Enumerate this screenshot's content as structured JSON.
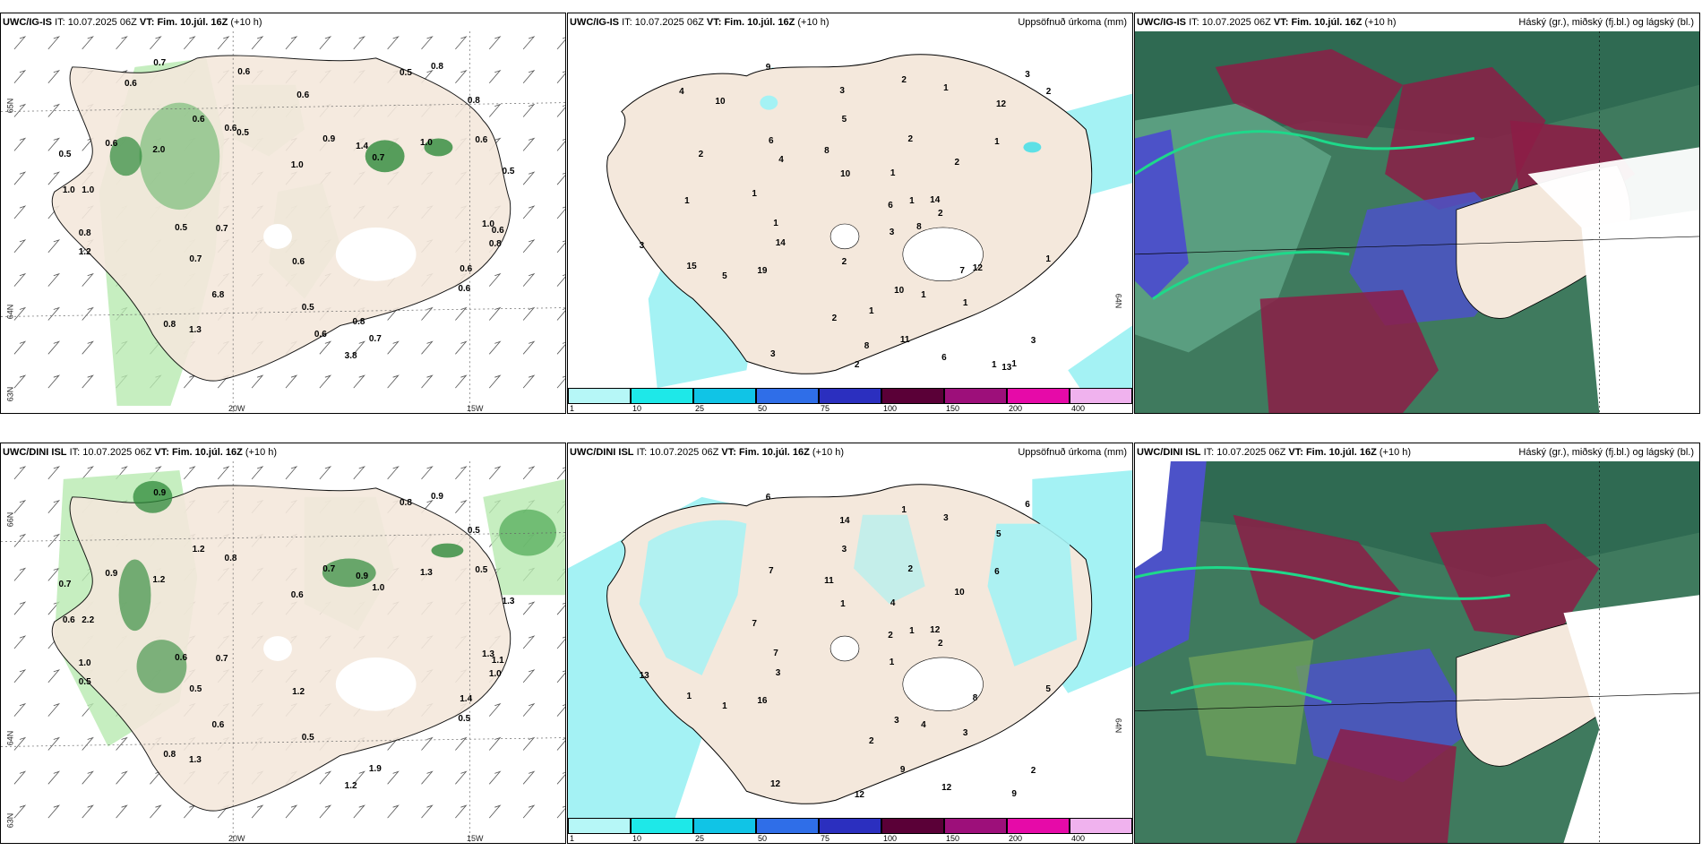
{
  "top": {
    "wind": {
      "model": "UWC/IG-IS",
      "it_label": "IT:",
      "it_value": "10.07.2025 06Z",
      "vt_label": "VT:",
      "vt_value": "Fim. 10.júl. 16Z",
      "lead": "(+10 h)",
      "lat_labels": [
        "65N",
        "64N",
        "63N"
      ],
      "lon_labels": [
        "20W",
        "15W"
      ],
      "values": [
        "0.6",
        "1.0",
        "0.6",
        "0.5",
        "0.8",
        "0.8",
        "0.5",
        "0.6",
        "0.8",
        "0.7",
        "0.5",
        "3.8",
        "0.8",
        "0.5",
        "0.7",
        "1.0",
        "6.8",
        "0.6",
        "1.0",
        "0.7",
        "0.8",
        "1.0",
        "0.6",
        "1.0",
        "0.6",
        "0.7",
        "1.3",
        "2.0",
        "0.6",
        "1.4",
        "0.9",
        "1.2",
        "0.7",
        "0.6",
        "0.5",
        "0.6",
        "0.6",
        "0.8",
        "0.6",
        "0.5",
        "0.6"
      ]
    },
    "precip": {
      "model": "UWC/IG-IS",
      "it_label": "IT:",
      "it_value": "10.07.2025 06Z",
      "vt_label": "VT:",
      "vt_value": "Fim. 10.júl. 16Z",
      "lead": "(+10 h)",
      "right_title": "Uppsöfnuð úrkoma (mm)",
      "lon_label": "64N",
      "values": [
        "2",
        "1",
        "1",
        "1",
        "3",
        "5",
        "3",
        "1",
        "6",
        "2",
        "5",
        "3",
        "1",
        "1",
        "1",
        "1",
        "1",
        "2",
        "10",
        "12",
        "15",
        "19",
        "14",
        "12",
        "11",
        "8",
        "2",
        "2",
        "3",
        "3",
        "3",
        "6",
        "9",
        "1",
        "14",
        "10",
        "6",
        "1",
        "2",
        "13",
        "8",
        "8",
        "10",
        "7",
        "1",
        "2",
        "1",
        "2",
        "2",
        "4",
        "4"
      ]
    },
    "cloud": {
      "model": "UWC/IG-IS",
      "it_label": "IT:",
      "it_value": "10.07.2025 06Z",
      "vt_label": "VT:",
      "vt_value": "Fim. 10.júl. 16Z",
      "lead": "(+10 h)",
      "right_title": "Háský (gr.), miðský (fj.bl.) og lágský (bl.)"
    }
  },
  "bottom": {
    "wind": {
      "model": "UWC/DINI ISL",
      "it_label": "IT:",
      "it_value": "10.07.2025 06Z",
      "vt_label": "VT:",
      "vt_value": "Fim. 10.júl. 16Z",
      "lead": "(+10 h)",
      "lat_labels": [
        "66N",
        "64N",
        "63N"
      ],
      "lon_labels": [
        "20W",
        "15W"
      ],
      "values": [
        "1.4",
        "1.3",
        "1.2",
        "0.5",
        "0.8",
        "0.9",
        "1.3",
        "1.1",
        "0.5",
        "0.9",
        "0.7",
        "1.2",
        "1.0",
        "0.8",
        "1.0",
        "2.2",
        "0.6",
        "0.8",
        "1.3",
        "0.7",
        "1.0",
        "0.6",
        "0.5",
        "0.6",
        "1.2",
        "1.9",
        "1.3",
        "1.2",
        "0.5",
        "0.9",
        "0.7",
        "0.5",
        "0.5",
        "0.9",
        "0.6"
      ]
    },
    "precip": {
      "model": "UWC/DINI ISL",
      "it_label": "IT:",
      "it_value": "10.07.2025 06Z",
      "vt_label": "VT:",
      "vt_value": "Fim. 10.júl. 16Z",
      "lead": "(+10 h)",
      "right_title": "Uppsöfnuð úrkoma (mm)",
      "lon_label": "64N",
      "values": [
        "1",
        "4",
        "5",
        "2",
        "1",
        "3",
        "6",
        "7",
        "12",
        "2",
        "1",
        "2",
        "3",
        "4",
        "6",
        "7",
        "9",
        "2",
        "3",
        "5",
        "1",
        "16",
        "12",
        "8",
        "9",
        "11",
        "12",
        "10",
        "13",
        "14",
        "12",
        "7",
        "6",
        "3",
        "3",
        "1",
        "2",
        "1"
      ]
    },
    "cloud": {
      "model": "UWC/DINI ISL",
      "it_label": "IT:",
      "it_value": "10.07.2025 06Z",
      "vt_label": "VT:",
      "vt_value": "Fim. 10.júl. 16Z",
      "lead": "(+10 h)",
      "right_title": "Háský (gr.), miðský (fj.bl.) og lágský (bl.)"
    }
  },
  "colorbar": {
    "ticks": [
      "1",
      "10",
      "25",
      "50",
      "75",
      "100",
      "150",
      "200",
      "400"
    ],
    "colors": [
      "#b6f7f7",
      "#1ee8e8",
      "#10c4e6",
      "#2f6ee8",
      "#2b2fbf",
      "#5a0037",
      "#9d0f7a",
      "#e60aa8",
      "#f0b2ee"
    ]
  },
  "colors": {
    "land": "#f4e8dc",
    "sea_precip": "#a4f2f4",
    "wind_green": "#b8eab0",
    "wind_dark": "#2e8a3a",
    "cloud_teal": "#1a8a6a",
    "cloud_maroon": "#8c1d46",
    "cloud_blue": "#4c52c8"
  }
}
